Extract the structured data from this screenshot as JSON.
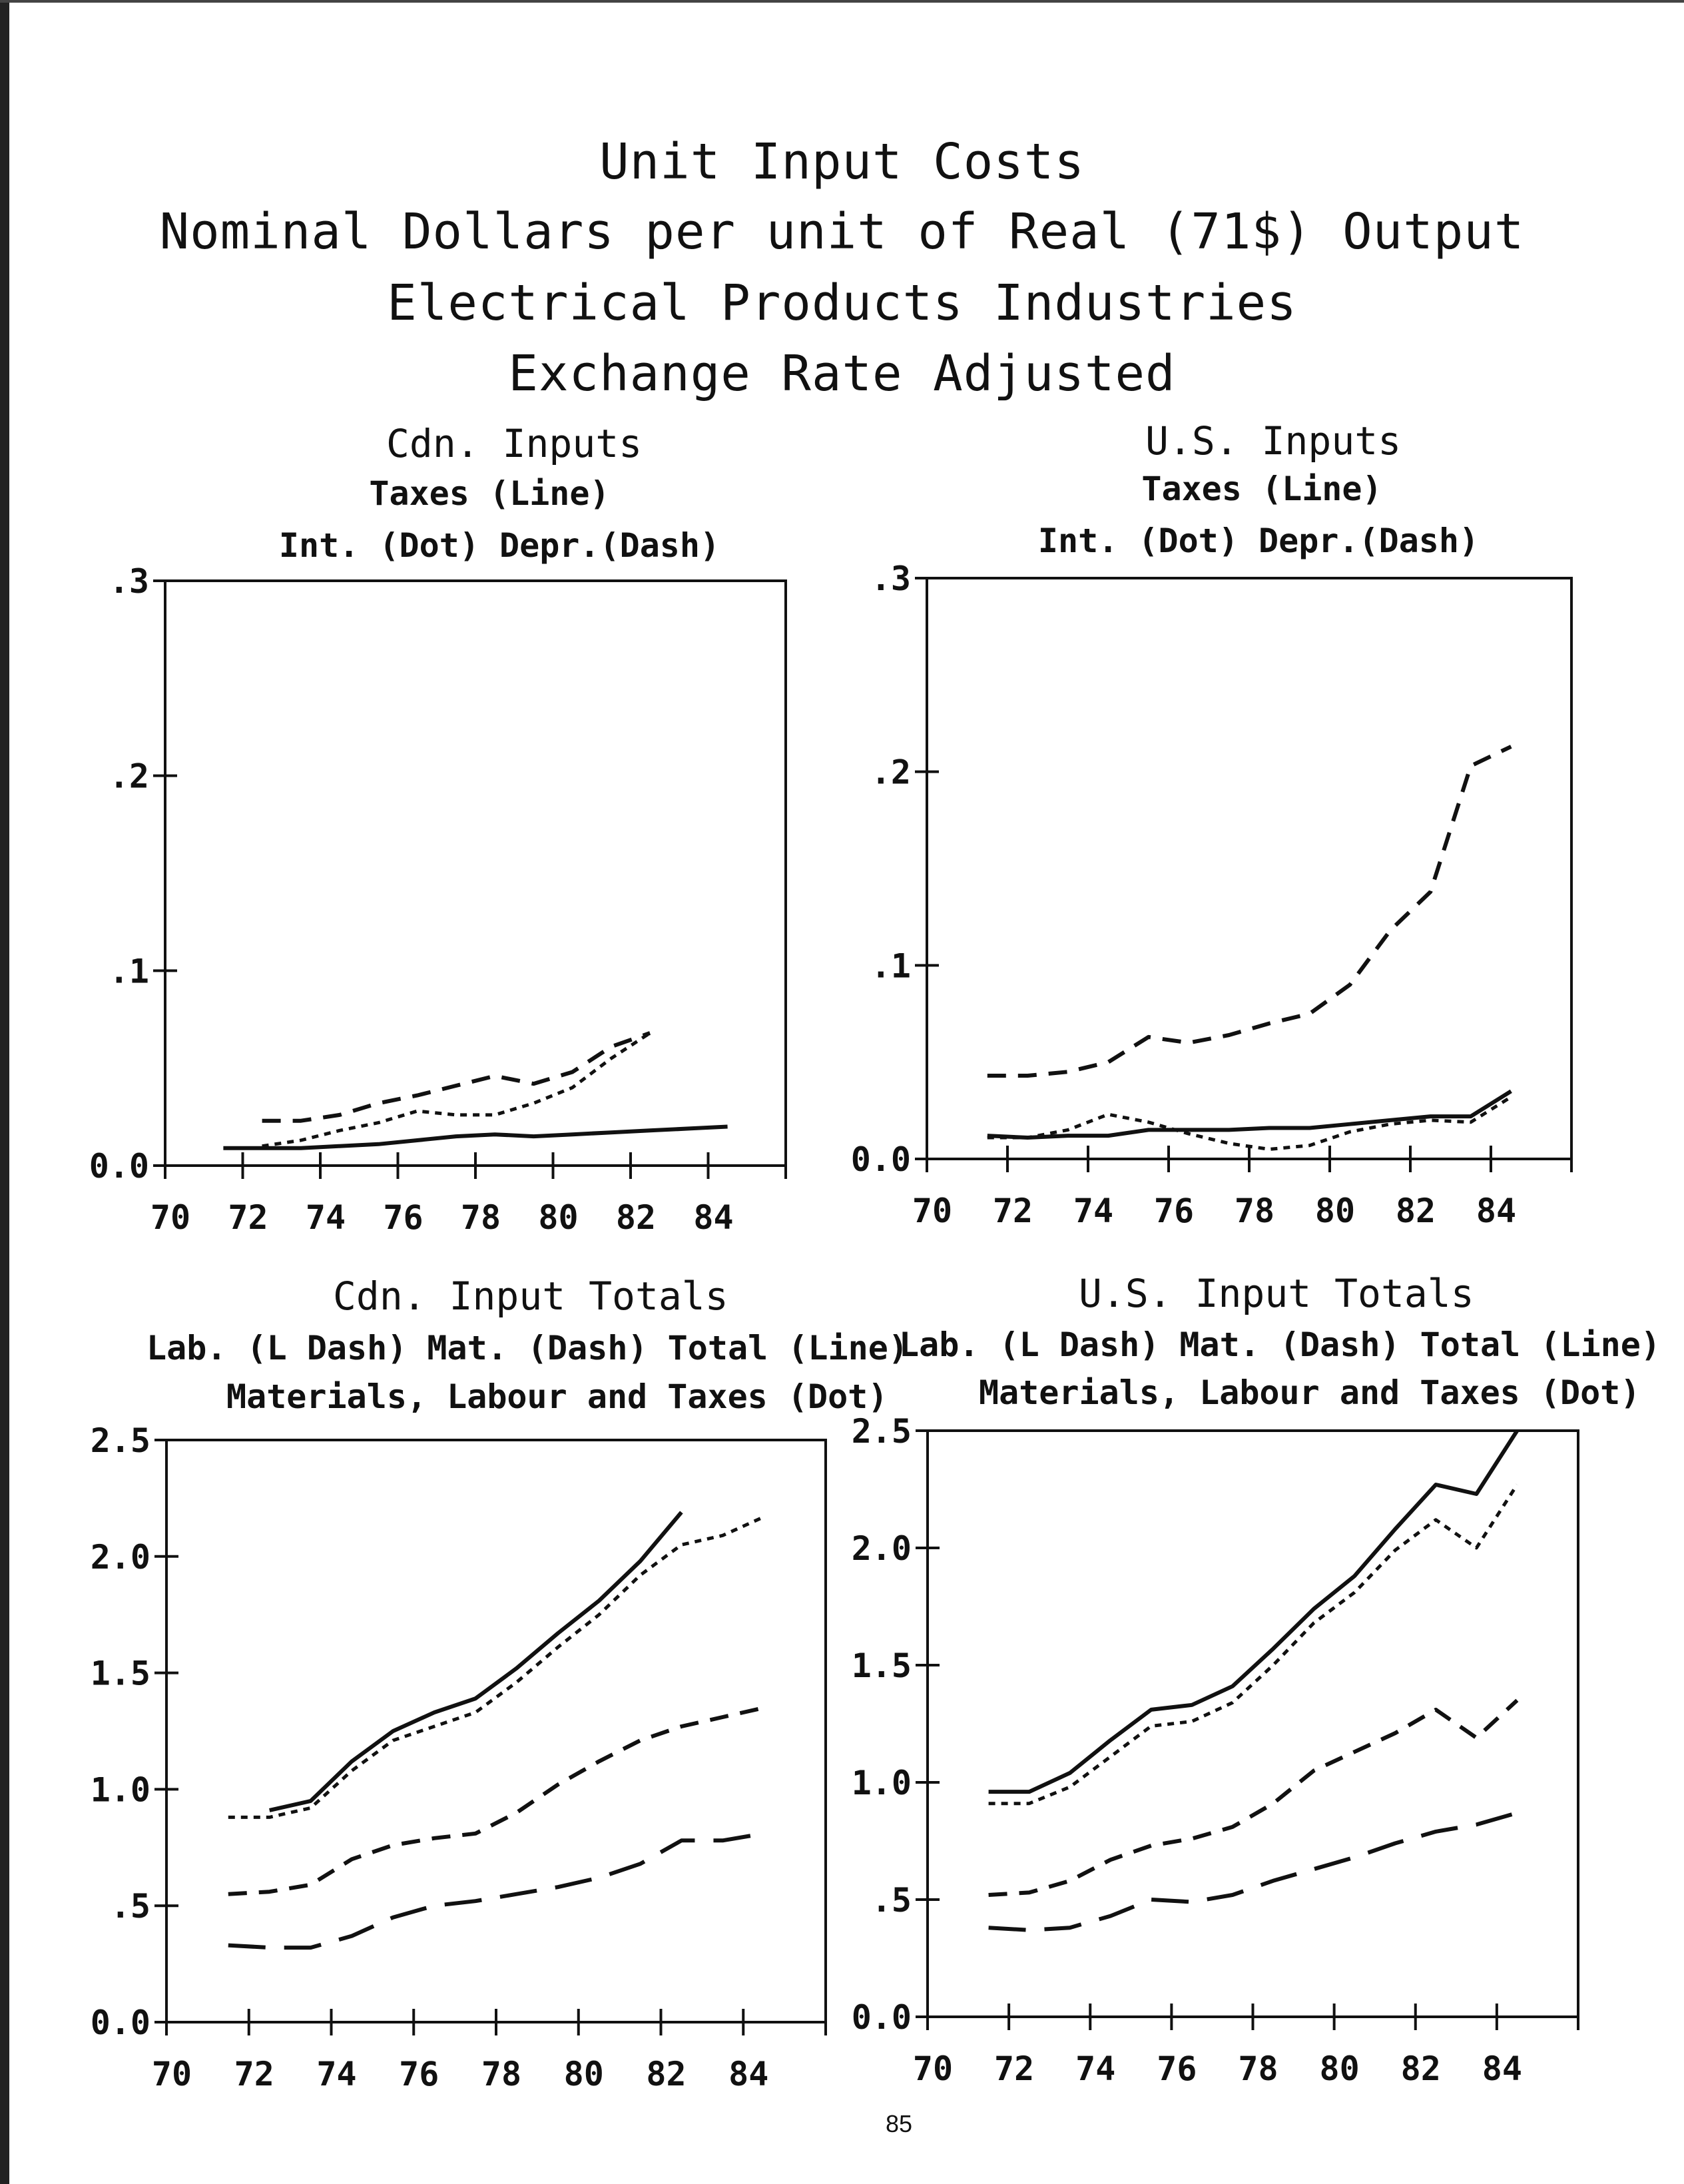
{
  "page": {
    "title_lines": [
      "Unit Input Costs",
      "Nominal Dollars per unit of Real (71$) Output",
      "Electrical Products Industries",
      "Exchange Rate Adjusted"
    ],
    "page_number": "85"
  },
  "panels": [
    {
      "heading": "Cdn. Inputs",
      "legend": [
        "Taxes (Line)",
        "Int. (Dot)     Depr.(Dash)"
      ]
    },
    {
      "heading": "U.S. Inputs",
      "legend": [
        "Taxes (Line)",
        "Int. (Dot)     Depr.(Dash)"
      ]
    },
    {
      "heading": "Cdn. Input Totals",
      "legend": [
        "Lab. (L Dash)     Mat. (Dash)     Total (Line)",
        "Materials, Labour and Taxes (Dot)"
      ]
    },
    {
      "heading": "U.S. Input Totals",
      "legend": [
        "Lab. (L Dash)     Mat. (Dash)     Total (Line)",
        "Materials, Labour and Taxes (Dot)"
      ]
    }
  ],
  "chart_data": [
    {
      "type": "line",
      "title": "Cdn. Inputs",
      "xlim": [
        70,
        86
      ],
      "ylim": [
        0,
        0.3
      ],
      "xticks": [
        70,
        72,
        74,
        76,
        78,
        80,
        82,
        84
      ],
      "xtick_labels": [
        "70",
        "72",
        "74",
        "76",
        "78",
        "80",
        "82",
        "84"
      ],
      "yticks": [
        0,
        0.1,
        0.2,
        0.3
      ],
      "ytick_labels": [
        "0.0",
        ".1",
        ".2",
        ".3"
      ],
      "series": [
        {
          "name": "Taxes (Line)",
          "style": "solid",
          "x": [
            71.5,
            72.5,
            73.5,
            74.5,
            75.5,
            76.5,
            77.5,
            78.5,
            79.5,
            80.5,
            81.5,
            82.5,
            83.5,
            84.5
          ],
          "y": [
            0.009,
            0.009,
            0.009,
            0.01,
            0.011,
            0.013,
            0.015,
            0.016,
            0.015,
            0.016,
            0.017,
            0.018,
            0.019,
            0.02
          ]
        },
        {
          "name": "Int. (Dot)",
          "style": "dot",
          "x": [
            72.5,
            73.5,
            74.5,
            75.5,
            76.5,
            77.5,
            78.5,
            79.5,
            80.5,
            81.5,
            82.5
          ],
          "y": [
            0.01,
            0.013,
            0.018,
            0.022,
            0.028,
            0.026,
            0.026,
            0.032,
            0.04,
            0.055,
            0.068
          ]
        },
        {
          "name": "Depr.(Dash)",
          "style": "dash",
          "x": [
            72.5,
            73.5,
            74.5,
            75.5,
            76.5,
            77.5,
            78.5,
            79.5,
            80.5,
            81.5,
            82.5
          ],
          "y": [
            0.023,
            0.023,
            0.026,
            0.032,
            0.036,
            0.041,
            0.046,
            0.042,
            0.048,
            0.061,
            0.068
          ]
        }
      ]
    },
    {
      "type": "line",
      "title": "U.S. Inputs",
      "xlim": [
        70,
        86
      ],
      "ylim": [
        0,
        0.3
      ],
      "xticks": [
        70,
        72,
        74,
        76,
        78,
        80,
        82,
        84
      ],
      "xtick_labels": [
        "70",
        "72",
        "74",
        "76",
        "78",
        "80",
        "82",
        "84"
      ],
      "yticks": [
        0,
        0.1,
        0.2,
        0.3
      ],
      "ytick_labels": [
        "0.0",
        ".1",
        ".2",
        ".3"
      ],
      "series": [
        {
          "name": "Taxes (Line)",
          "style": "solid",
          "x": [
            71.5,
            72.5,
            73.5,
            74.5,
            75.5,
            76.5,
            77.5,
            78.5,
            79.5,
            80.5,
            81.5,
            82.5,
            83.5,
            84.5
          ],
          "y": [
            0.012,
            0.011,
            0.012,
            0.012,
            0.015,
            0.015,
            0.015,
            0.016,
            0.016,
            0.018,
            0.02,
            0.022,
            0.022,
            0.035
          ]
        },
        {
          "name": "Int. (Dot)",
          "style": "dot",
          "x": [
            71.5,
            72.5,
            73.5,
            74.5,
            75.5,
            76.5,
            77.5,
            78.5,
            79.5,
            80.5,
            81.5,
            82.5,
            83.5,
            84.5
          ],
          "y": [
            0.011,
            0.011,
            0.015,
            0.023,
            0.019,
            0.013,
            0.008,
            0.005,
            0.007,
            0.014,
            0.018,
            0.02,
            0.019,
            0.032
          ]
        },
        {
          "name": "Depr.(Dash)",
          "style": "dash",
          "x": [
            71.5,
            72.5,
            73.5,
            74.5,
            75.5,
            76.5,
            77.5,
            78.5,
            79.5,
            80.5,
            81.5,
            82.5,
            83.5,
            84.5
          ],
          "y": [
            0.043,
            0.043,
            0.045,
            0.05,
            0.063,
            0.06,
            0.064,
            0.07,
            0.075,
            0.09,
            0.118,
            0.138,
            0.203,
            0.213
          ]
        }
      ]
    },
    {
      "type": "line",
      "title": "Cdn. Input Totals",
      "xlim": [
        70,
        86
      ],
      "ylim": [
        0,
        2.5
      ],
      "xticks": [
        70,
        72,
        74,
        76,
        78,
        80,
        82,
        84
      ],
      "xtick_labels": [
        "70",
        "72",
        "74",
        "76",
        "78",
        "80",
        "82",
        "84"
      ],
      "yticks": [
        0,
        0.5,
        1.0,
        1.5,
        2.0,
        2.5
      ],
      "ytick_labels": [
        "0.0",
        ".5",
        "1.0",
        "1.5",
        "2.0",
        "2.5"
      ],
      "series": [
        {
          "name": "Lab. (L Dash)",
          "style": "longdash",
          "x": [
            71.5,
            72.5,
            73.5,
            74.5,
            75.5,
            76.5,
            77.5,
            78.5,
            79.5,
            80.5,
            81.5,
            82.5,
            83.5,
            84.5
          ],
          "y": [
            0.33,
            0.32,
            0.32,
            0.37,
            0.45,
            0.5,
            0.52,
            0.55,
            0.58,
            0.62,
            0.68,
            0.78,
            0.78,
            0.81
          ]
        },
        {
          "name": "Mat. (Dash)",
          "style": "dash",
          "x": [
            71.5,
            72.5,
            73.5,
            74.5,
            75.5,
            76.5,
            77.5,
            78.5,
            79.5,
            80.5,
            81.5,
            82.5,
            83.5,
            84.5
          ],
          "y": [
            0.55,
            0.56,
            0.59,
            0.7,
            0.76,
            0.79,
            0.81,
            0.9,
            1.02,
            1.12,
            1.21,
            1.27,
            1.31,
            1.35
          ]
        },
        {
          "name": "Total (Line)",
          "style": "solid",
          "x": [
            72.5,
            73.5,
            74.5,
            75.5,
            76.5,
            77.5,
            78.5,
            79.5,
            80.5,
            81.5,
            82.5
          ],
          "y": [
            0.91,
            0.95,
            1.12,
            1.25,
            1.33,
            1.39,
            1.52,
            1.67,
            1.81,
            1.98,
            2.19
          ]
        },
        {
          "name": "Materials, Labour and Taxes (Dot)",
          "style": "dot",
          "x": [
            71.5,
            72.5,
            73.5,
            74.5,
            75.5,
            76.5,
            77.5,
            78.5,
            79.5,
            80.5,
            81.5,
            82.5,
            83.5,
            84.5
          ],
          "y": [
            0.88,
            0.88,
            0.92,
            1.08,
            1.21,
            1.27,
            1.33,
            1.46,
            1.61,
            1.75,
            1.92,
            2.05,
            2.09,
            2.17
          ]
        }
      ]
    },
    {
      "type": "line",
      "title": "U.S. Input Totals",
      "xlim": [
        70,
        86
      ],
      "ylim": [
        0,
        2.5
      ],
      "xticks": [
        70,
        72,
        74,
        76,
        78,
        80,
        82,
        84
      ],
      "xtick_labels": [
        "70",
        "72",
        "74",
        "76",
        "78",
        "80",
        "82",
        "84"
      ],
      "yticks": [
        0,
        0.5,
        1.0,
        1.5,
        2.0,
        2.5
      ],
      "ytick_labels": [
        "0.0",
        ".5",
        "1.0",
        "1.5",
        "2.0",
        "2.5"
      ],
      "series": [
        {
          "name": "Lab. (L Dash)",
          "style": "longdash",
          "x": [
            71.5,
            72.5,
            73.5,
            74.5,
            75.5,
            76.5,
            77.5,
            78.5,
            79.5,
            80.5,
            81.5,
            82.5,
            83.5,
            84.5
          ],
          "y": [
            0.38,
            0.37,
            0.38,
            0.43,
            0.5,
            0.49,
            0.52,
            0.58,
            0.63,
            0.68,
            0.74,
            0.79,
            0.82,
            0.87
          ]
        },
        {
          "name": "Mat. (Dash)",
          "style": "dash",
          "x": [
            71.5,
            72.5,
            73.5,
            74.5,
            75.5,
            76.5,
            77.5,
            78.5,
            79.5,
            80.5,
            81.5,
            82.5,
            83.5,
            84.5
          ],
          "y": [
            0.52,
            0.53,
            0.58,
            0.67,
            0.73,
            0.76,
            0.81,
            0.91,
            1.05,
            1.13,
            1.21,
            1.31,
            1.19,
            1.35
          ]
        },
        {
          "name": "Total (Line)",
          "style": "solid",
          "x": [
            71.5,
            72.5,
            73.5,
            74.5,
            75.5,
            76.5,
            77.5,
            78.5,
            79.5,
            80.5,
            81.5,
            82.5,
            83.5,
            84.5
          ],
          "y": [
            0.96,
            0.96,
            1.04,
            1.18,
            1.31,
            1.33,
            1.41,
            1.57,
            1.74,
            1.88,
            2.08,
            2.27,
            2.23,
            2.5
          ]
        },
        {
          "name": "Materials, Labour and Taxes (Dot)",
          "style": "dot",
          "x": [
            71.5,
            72.5,
            73.5,
            74.5,
            75.5,
            76.5,
            77.5,
            78.5,
            79.5,
            80.5,
            81.5,
            82.5,
            83.5,
            84.5
          ],
          "y": [
            0.91,
            0.91,
            0.98,
            1.11,
            1.24,
            1.26,
            1.34,
            1.5,
            1.68,
            1.81,
            1.99,
            2.12,
            2.0,
            2.27
          ]
        }
      ]
    }
  ]
}
